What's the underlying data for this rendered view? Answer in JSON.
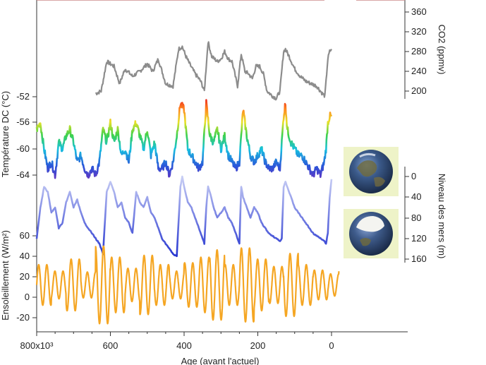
{
  "chart_data": {
    "type": "line",
    "x_axis": {
      "label": "Age (avant l'actuel)",
      "range": [
        800000,
        -20000
      ],
      "ticks": [
        {
          "value": 800000,
          "label": "800x10³"
        },
        {
          "value": 600000,
          "label": "600"
        },
        {
          "value": 400000,
          "label": "400"
        },
        {
          "value": 200000,
          "label": "200"
        },
        {
          "value": 0,
          "label": "0"
        }
      ]
    },
    "panels": [
      {
        "id": "co2",
        "axis_side": "right",
        "axis_label": "CO2 (ppmv)",
        "range": [
          180,
          380
        ],
        "ticks": [
          "200",
          "240",
          "280",
          "320",
          "360"
        ],
        "color": "#8c8c8c",
        "x": [
          640000,
          625000,
          610000,
          590000,
          575000,
          560000,
          540000,
          520000,
          500000,
          485000,
          470000,
          450000,
          430000,
          415000,
          405000,
          395000,
          385000,
          370000,
          355000,
          345000,
          335000,
          325000,
          310000,
          300000,
          290000,
          280000,
          270000,
          255000,
          245000,
          235000,
          225000,
          215000,
          205000,
          195000,
          185000,
          175000,
          160000,
          150000,
          140000,
          130000,
          125000,
          115000,
          100000,
          85000,
          70000,
          55000,
          40000,
          25000,
          18000,
          10000,
          5000,
          0
        ],
        "y": [
          195,
          200,
          260,
          250,
          215,
          245,
          230,
          240,
          255,
          240,
          265,
          215,
          210,
          285,
          290,
          270,
          255,
          235,
          220,
          200,
          300,
          270,
          260,
          265,
          280,
          265,
          260,
          210,
          275,
          240,
          235,
          225,
          250,
          250,
          235,
          200,
          190,
          185,
          200,
          280,
          285,
          270,
          245,
          230,
          220,
          215,
          210,
          195,
          190,
          265,
          280,
          285
        ]
      },
      {
        "id": "temperature",
        "axis_side": "left",
        "axis_label": "Température DC (°C)",
        "range": [
          -65,
          -51
        ],
        "ticks": [
          "-52",
          "-56",
          "-60",
          "-64"
        ],
        "color_scale": [
          "#7b2fbe",
          "#2b55d9",
          "#17c0e0",
          "#3fd24a",
          "#e8e22a",
          "#ff8a1e",
          "#e8141e"
        ],
        "x": [
          800000,
          790000,
          780000,
          770000,
          760000,
          750000,
          740000,
          730000,
          720000,
          710000,
          700000,
          690000,
          680000,
          670000,
          660000,
          650000,
          640000,
          630000,
          620000,
          610000,
          600000,
          590000,
          580000,
          570000,
          560000,
          550000,
          540000,
          530000,
          520000,
          510000,
          500000,
          490000,
          480000,
          470000,
          460000,
          450000,
          440000,
          430000,
          420000,
          410000,
          400000,
          390000,
          380000,
          370000,
          360000,
          350000,
          340000,
          330000,
          320000,
          310000,
          300000,
          290000,
          280000,
          270000,
          260000,
          250000,
          240000,
          230000,
          220000,
          210000,
          200000,
          190000,
          180000,
          170000,
          160000,
          150000,
          140000,
          130000,
          125000,
          120000,
          110000,
          100000,
          90000,
          80000,
          70000,
          60000,
          50000,
          40000,
          30000,
          20000,
          15000,
          10000,
          5000,
          0
        ],
        "y": [
          -57,
          -56,
          -60,
          -63,
          -62,
          -64,
          -59,
          -60,
          -58,
          -57,
          -59,
          -62,
          -61,
          -63,
          -64,
          -63,
          -64,
          -62,
          -57,
          -59,
          -56,
          -59,
          -57,
          -61,
          -60,
          -62,
          -57,
          -56,
          -58,
          -60,
          -57,
          -61,
          -59,
          -63,
          -63,
          -62,
          -64,
          -62,
          -58,
          -53,
          -54,
          -60,
          -61,
          -62,
          -63,
          -62,
          -53,
          -58,
          -59,
          -57,
          -60,
          -58,
          -61,
          -62,
          -63,
          -62,
          -54,
          -58,
          -61,
          -62,
          -61,
          -60,
          -62,
          -63,
          -63,
          -62,
          -63,
          -55,
          -53,
          -57,
          -59,
          -60,
          -61,
          -61,
          -62,
          -63,
          -64,
          -63,
          -64,
          -62,
          -60,
          -56,
          -55,
          -55
        ]
      },
      {
        "id": "sea_level",
        "axis_side": "right",
        "axis_label": "Niveau des mers (m)",
        "range": [
          -10,
          180
        ],
        "inverted": true,
        "ticks": [
          "0",
          "40",
          "80",
          "120",
          "160"
        ],
        "color": "#2f3fd6",
        "x": [
          800000,
          790000,
          780000,
          770000,
          760000,
          750000,
          740000,
          730000,
          720000,
          710000,
          700000,
          690000,
          680000,
          670000,
          660000,
          650000,
          640000,
          630000,
          625000,
          620000,
          610000,
          600000,
          590000,
          580000,
          570000,
          560000,
          550000,
          540000,
          530000,
          520000,
          510000,
          500000,
          490000,
          480000,
          470000,
          460000,
          450000,
          440000,
          430000,
          420000,
          410000,
          405000,
          400000,
          390000,
          380000,
          370000,
          360000,
          350000,
          345000,
          340000,
          335000,
          330000,
          320000,
          310000,
          300000,
          290000,
          280000,
          270000,
          260000,
          250000,
          245000,
          240000,
          230000,
          220000,
          210000,
          200000,
          190000,
          180000,
          170000,
          160000,
          150000,
          140000,
          135000,
          130000,
          125000,
          120000,
          110000,
          100000,
          90000,
          80000,
          70000,
          60000,
          50000,
          40000,
          30000,
          20000,
          15000,
          10000,
          5000,
          0
        ],
        "y": [
          120,
          60,
          20,
          30,
          70,
          60,
          100,
          90,
          50,
          30,
          60,
          45,
          70,
          90,
          100,
          110,
          120,
          130,
          140,
          150,
          30,
          10,
          30,
          60,
          50,
          80,
          90,
          110,
          30,
          50,
          60,
          40,
          70,
          80,
          100,
          120,
          130,
          140,
          150,
          155,
          20,
          0,
          20,
          50,
          60,
          80,
          100,
          120,
          130,
          60,
          20,
          30,
          60,
          80,
          70,
          60,
          80,
          90,
          110,
          130,
          20,
          40,
          60,
          80,
          60,
          70,
          90,
          100,
          110,
          115,
          120,
          125,
          120,
          20,
          10,
          20,
          40,
          60,
          70,
          80,
          90,
          100,
          110,
          115,
          120,
          125,
          130,
          110,
          40,
          5
        ]
      },
      {
        "id": "insolation",
        "axis_side": "left",
        "axis_label": "Ensoleillement (W/m²)",
        "range": [
          -30,
          65
        ],
        "ticks": [
          "60",
          "40",
          "20",
          "0",
          "-20"
        ],
        "color": "#f5a623",
        "x_range": [
          800000,
          -20000
        ],
        "segments": [
          {
            "x0": 800000,
            "x1": 760000,
            "amplitude": 22
          },
          {
            "x0": 760000,
            "x1": 720000,
            "amplitude": 15
          },
          {
            "x0": 720000,
            "x1": 680000,
            "amplitude": 28
          },
          {
            "x0": 680000,
            "x1": 640000,
            "amplitude": 14
          },
          {
            "x0": 640000,
            "x1": 600000,
            "amplitude": 42
          },
          {
            "x0": 600000,
            "x1": 560000,
            "amplitude": 30
          },
          {
            "x0": 560000,
            "x1": 520000,
            "amplitude": 18
          },
          {
            "x0": 520000,
            "x1": 480000,
            "amplitude": 32
          },
          {
            "x0": 480000,
            "x1": 440000,
            "amplitude": 22
          },
          {
            "x0": 440000,
            "x1": 400000,
            "amplitude": 15
          },
          {
            "x0": 400000,
            "x1": 360000,
            "amplitude": 24
          },
          {
            "x0": 360000,
            "x1": 330000,
            "amplitude": 30
          },
          {
            "x0": 330000,
            "x1": 290000,
            "amplitude": 38
          },
          {
            "x0": 290000,
            "x1": 250000,
            "amplitude": 22
          },
          {
            "x0": 250000,
            "x1": 210000,
            "amplitude": 40
          },
          {
            "x0": 210000,
            "x1": 170000,
            "amplitude": 28
          },
          {
            "x0": 170000,
            "x1": 130000,
            "amplitude": 20
          },
          {
            "x0": 130000,
            "x1": 90000,
            "amplitude": 34
          },
          {
            "x0": 90000,
            "x1": 50000,
            "amplitude": 22
          },
          {
            "x0": 50000,
            "x1": 10000,
            "amplitude": 16
          },
          {
            "x0": 10000,
            "x1": -20000,
            "amplitude": 12
          }
        ],
        "offset": 12,
        "period_ky": 22
      }
    ],
    "legend_images": [
      {
        "name": "earth-interglacial-icon",
        "description_word": "globe"
      },
      {
        "name": "earth-glacial-icon",
        "description_word": "globe-ice"
      }
    ]
  }
}
